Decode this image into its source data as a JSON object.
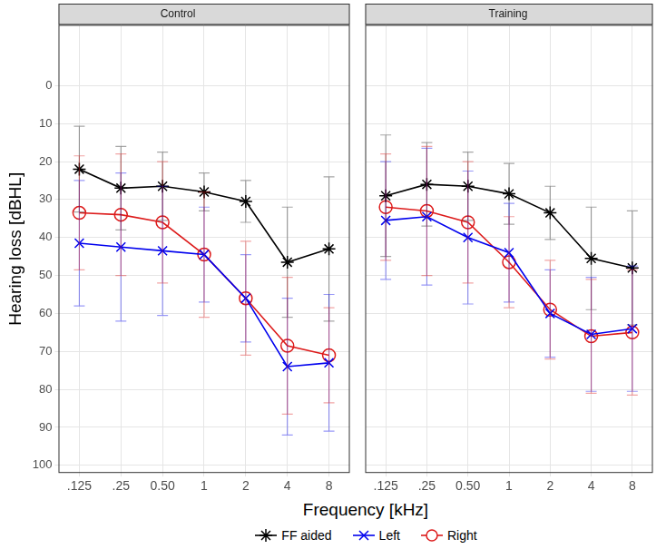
{
  "chart_data": [
    {
      "type": "line",
      "title": "Control",
      "y_label": "Hearing loss [dBHL]",
      "x_label": "Frequency [kHz]",
      "categories": [
        ".125",
        ".25",
        "0.50",
        "1",
        "2",
        "4",
        "8"
      ],
      "ylim": [
        102,
        -16
      ],
      "yticks": [
        0,
        10,
        20,
        30,
        40,
        50,
        60,
        70,
        80,
        90,
        100
      ],
      "grid": true,
      "legend": "bottom",
      "series": [
        {
          "name": "FF aided",
          "color": "#000000",
          "marker": "asterisk",
          "values": [
            22,
            27,
            26.5,
            28,
            30.5,
            46.5,
            43
          ],
          "errors": [
            11.3,
            11,
            9,
            5,
            5.5,
            14.5,
            19
          ]
        },
        {
          "name": "Left",
          "color": "#0000ee",
          "marker": "x",
          "values": [
            41.5,
            42.5,
            43.5,
            44.5,
            56,
            74,
            73
          ],
          "errors": [
            16.5,
            19.5,
            17,
            12.5,
            11.5,
            18,
            18
          ]
        },
        {
          "name": "Right",
          "color": "#dd1c1c",
          "marker": "circle",
          "values": [
            33.5,
            34,
            36,
            44.5,
            56,
            68.5,
            71
          ],
          "errors": [
            15,
            16,
            16,
            16.5,
            15,
            18,
            12.5
          ]
        }
      ]
    },
    {
      "type": "line",
      "title": "Training",
      "categories": [
        ".125",
        ".25",
        "0.50",
        "1",
        "2",
        "4",
        "8"
      ],
      "ylim": [
        102,
        -16
      ],
      "yticks": [
        0,
        10,
        20,
        30,
        40,
        50,
        60,
        70,
        80,
        90,
        100
      ],
      "grid": true,
      "tick_labels": "x",
      "series": [
        {
          "name": "FF aided",
          "color": "#000000",
          "marker": "asterisk",
          "values": [
            29,
            26,
            26.5,
            28.5,
            33.5,
            45.5,
            48
          ],
          "errors": [
            16,
            11,
            9,
            8,
            7,
            13.5,
            15
          ]
        },
        {
          "name": "Left",
          "color": "#0000ee",
          "marker": "x",
          "values": [
            35.5,
            34.5,
            40,
            44,
            60,
            65.5,
            64
          ],
          "errors": [
            15.5,
            18,
            17.5,
            13,
            11.5,
            15,
            16.5
          ]
        },
        {
          "name": "Right",
          "color": "#dd1c1c",
          "marker": "circle",
          "values": [
            32,
            33,
            36,
            46.5,
            59,
            66,
            65
          ],
          "errors": [
            14,
            17,
            16,
            12,
            13,
            15,
            16.5
          ]
        }
      ]
    }
  ]
}
